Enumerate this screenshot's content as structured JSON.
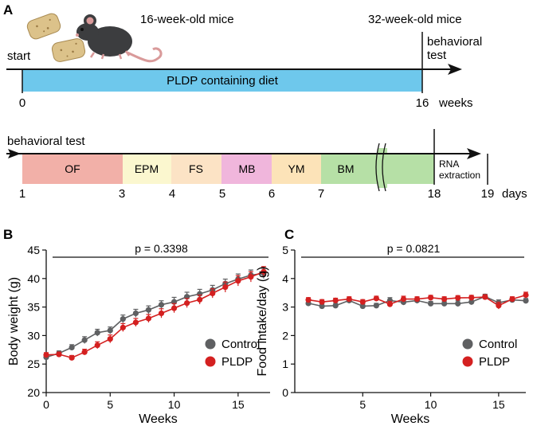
{
  "panel_a": {
    "letter": "A",
    "start_label": "start",
    "mice_16_label": "16-week-old mice",
    "mice_32_label": "32-week-old mice",
    "behavioral_test_label_line1": "behavioral",
    "behavioral_test_label_line2": "test",
    "diet_label": "PLDP containing diet",
    "diet_color": "#6ec8ec",
    "tick_start": "0",
    "tick_end": "16",
    "weeks_label": "weeks",
    "timeline2_title": "behavioral test",
    "rna_line1": "RNA",
    "rna_line2": "extraction",
    "days_label": "days",
    "tests": [
      {
        "name": "OF",
        "color": "#f2b0a8"
      },
      {
        "name": "EPM",
        "color": "#fbf7cf"
      },
      {
        "name": "FS",
        "color": "#fce3c5"
      },
      {
        "name": "MB",
        "color": "#f0b6dc"
      },
      {
        "name": "YM",
        "color": "#fce3b8"
      },
      {
        "name": "BM",
        "color": "#b6e0a6"
      }
    ],
    "day_ticks": [
      "1",
      "3",
      "4",
      "5",
      "6",
      "7",
      "18",
      "19"
    ]
  },
  "chart_data": [
    {
      "panel": "B",
      "type": "line",
      "title": "",
      "annotation": "p = 0.3398",
      "xlabel": "Weeks",
      "ylabel": "Body weight (g)",
      "xlim": [
        0,
        17.5
      ],
      "ylim": [
        20,
        45
      ],
      "xticks": [
        0,
        5,
        10,
        15
      ],
      "yticks": [
        20,
        25,
        30,
        35,
        40,
        45
      ],
      "x": [
        0,
        1,
        2,
        3,
        4,
        5,
        6,
        7,
        8,
        9,
        10,
        11,
        12,
        13,
        14,
        15,
        16,
        17
      ],
      "legend_position": "bottom-right",
      "series": [
        {
          "name": "Control",
          "color": "#5f6062",
          "values": [
            26.2,
            26.9,
            27.9,
            29.2,
            30.5,
            30.9,
            32.9,
            33.9,
            34.5,
            35.4,
            35.9,
            36.8,
            37.3,
            38.0,
            39.1,
            39.9,
            40.6,
            40.9
          ],
          "errors": [
            0.4,
            0.4,
            0.5,
            0.6,
            0.6,
            0.6,
            0.7,
            0.7,
            0.7,
            0.7,
            0.8,
            0.8,
            0.8,
            0.8,
            0.8,
            0.9,
            0.9,
            0.9
          ]
        },
        {
          "name": "PLDP",
          "color": "#d42020",
          "values": [
            26.6,
            26.7,
            26.1,
            27.1,
            28.3,
            29.4,
            31.4,
            32.3,
            33.0,
            33.9,
            34.8,
            35.7,
            36.3,
            37.4,
            38.5,
            39.6,
            40.3,
            41.2
          ],
          "errors": [
            0.4,
            0.4,
            0.4,
            0.5,
            0.6,
            0.7,
            0.7,
            0.7,
            0.7,
            0.8,
            0.8,
            0.8,
            0.8,
            0.8,
            0.9,
            0.9,
            0.9,
            0.9
          ]
        }
      ]
    },
    {
      "panel": "C",
      "type": "line",
      "title": "",
      "annotation": "p = 0.0821",
      "xlabel": "Weeks",
      "ylabel": "Food intake/day (g)",
      "xlim": [
        0,
        17
      ],
      "ylim": [
        0,
        5
      ],
      "xticks": [
        5,
        10,
        15
      ],
      "yticks": [
        0,
        1,
        2,
        3,
        4,
        5
      ],
      "x": [
        1,
        2,
        3,
        4,
        5,
        6,
        7,
        8,
        9,
        10,
        11,
        12,
        13,
        14,
        15,
        16,
        17
      ],
      "legend_position": "bottom-right",
      "series": [
        {
          "name": "Control",
          "color": "#5f6062",
          "values": [
            3.13,
            3.03,
            3.05,
            3.23,
            3.03,
            3.05,
            3.23,
            3.17,
            3.23,
            3.12,
            3.12,
            3.12,
            3.18,
            3.37,
            3.15,
            3.25,
            3.22
          ],
          "errors": [
            0.1,
            0.08,
            0.08,
            0.08,
            0.08,
            0.08,
            0.1,
            0.1,
            0.1,
            0.08,
            0.08,
            0.1,
            0.1,
            0.08,
            0.1,
            0.08,
            0.08
          ]
        },
        {
          "name": "PLDP",
          "color": "#d42020",
          "values": [
            3.25,
            3.18,
            3.23,
            3.28,
            3.18,
            3.3,
            3.1,
            3.28,
            3.28,
            3.33,
            3.28,
            3.32,
            3.33,
            3.35,
            3.05,
            3.28,
            3.42
          ],
          "errors": [
            0.08,
            0.08,
            0.08,
            0.08,
            0.08,
            0.08,
            0.1,
            0.1,
            0.08,
            0.08,
            0.08,
            0.08,
            0.08,
            0.08,
            0.12,
            0.08,
            0.1
          ]
        }
      ]
    }
  ]
}
